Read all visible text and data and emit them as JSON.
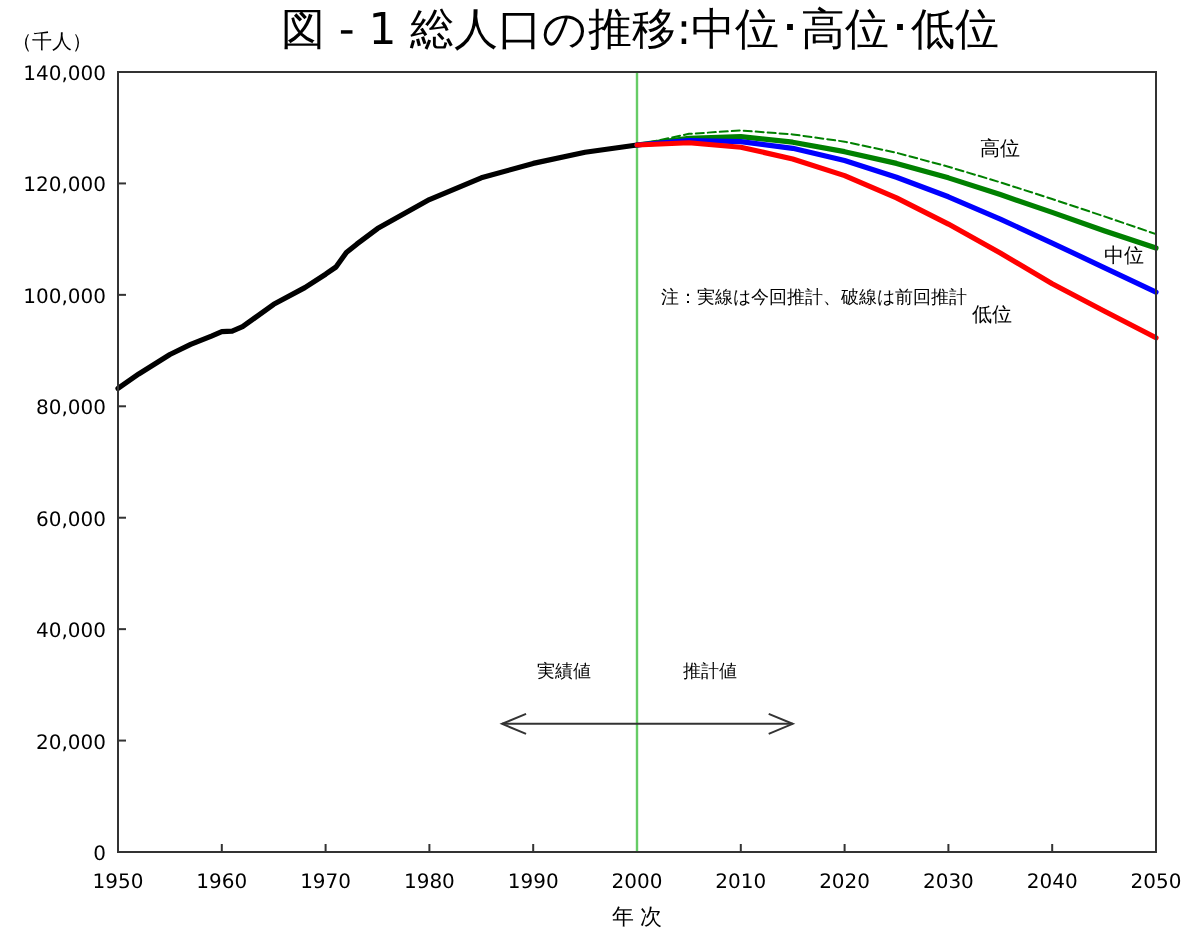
{
  "chart_data": {
    "type": "line",
    "title": "図 - 1  総人口の推移:中位･高位･低位",
    "xlabel": "年 次",
    "ylabel": "（千人）",
    "xlim": [
      1950,
      2050
    ],
    "xticks": [
      1950,
      1960,
      1970,
      1980,
      1990,
      2000,
      2010,
      2020,
      2030,
      2040,
      2050
    ],
    "ylim": [
      0,
      140000
    ],
    "yticks": [
      {
        "value": 0,
        "label": "0"
      },
      {
        "value": 20000,
        "label": "20,000"
      },
      {
        "value": 40000,
        "label": "40,000"
      },
      {
        "value": 60000,
        "label": "60,000"
      },
      {
        "value": 80000,
        "label": "80,000"
      },
      {
        "value": 100000,
        "label": "100,000"
      },
      {
        "value": 120000,
        "label": "120,000"
      },
      {
        "value": 140000,
        "label": "140,000"
      }
    ],
    "grid": false,
    "series": [
      {
        "color": "#000000",
        "line_style": "solid",
        "x": [
          1950,
          1952,
          1955,
          1957,
          1959,
          1960,
          1961,
          1962,
          1965,
          1968,
          1970,
          1971,
          1972,
          1973,
          1975,
          1980,
          1985,
          1990,
          1995,
          2000
        ],
        "values": [
          83200,
          85800,
          89300,
          91100,
          92600,
          93400,
          93500,
          94300,
          98300,
          101300,
          103700,
          105000,
          107600,
          109100,
          111900,
          117100,
          121000,
          123600,
          125600,
          126900
        ]
      },
      {
        "color": "#008000",
        "line_style": "dashed",
        "x": [
          2000,
          2005,
          2010,
          2015,
          2020,
          2025,
          2030,
          2035,
          2040,
          2045,
          2050
        ],
        "values": [
          126900,
          128900,
          129500,
          128800,
          127500,
          125500,
          123000,
          120200,
          117200,
          114100,
          110900
        ]
      },
      {
        "name": "高位",
        "color": "#008000",
        "line_style": "solid",
        "x": [
          2000,
          2005,
          2010,
          2015,
          2020,
          2025,
          2030,
          2035,
          2040,
          2045,
          2050
        ],
        "values": [
          126900,
          128100,
          128400,
          127400,
          125700,
          123600,
          121000,
          118000,
          114800,
          111500,
          108400
        ]
      },
      {
        "name": "中位",
        "color": "#0000ff",
        "line_style": "solid",
        "x": [
          2000,
          2005,
          2010,
          2015,
          2020,
          2025,
          2030,
          2035,
          2040,
          2045,
          2050
        ],
        "values": [
          126900,
          127700,
          127500,
          126300,
          124100,
          121100,
          117600,
          113600,
          109300,
          104900,
          100500
        ]
      },
      {
        "name": "低位",
        "color": "#ff0000",
        "line_style": "solid",
        "x": [
          2000,
          2005,
          2010,
          2015,
          2020,
          2025,
          2030,
          2035,
          2040,
          2045,
          2050
        ],
        "values": [
          126900,
          127300,
          126500,
          124400,
          121400,
          117400,
          112700,
          107500,
          102000,
          97100,
          92300
        ]
      }
    ],
    "ref_lines": [
      {
        "axis": "x",
        "value": 2000,
        "color": "#66cc66"
      }
    ],
    "annotations": [
      "注：実線は今回推計、破線は前回推計",
      "実績値",
      "推計値"
    ]
  }
}
